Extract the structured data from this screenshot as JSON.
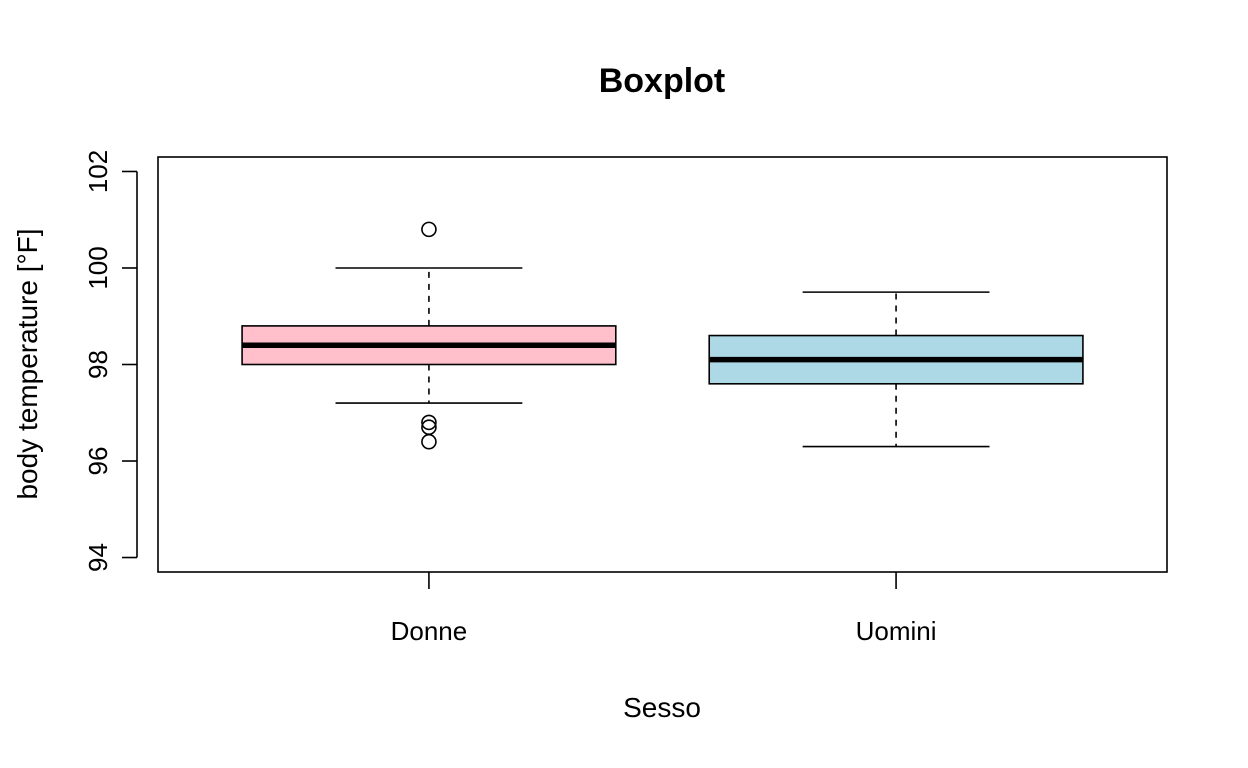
{
  "chart_data": {
    "type": "boxplot",
    "title": "Boxplot",
    "xlabel": "Sesso",
    "ylabel": "body temperature [°F]",
    "ylim": [
      93.7,
      102.3
    ],
    "yticks": [
      94,
      96,
      98,
      100,
      102
    ],
    "grid": false,
    "categories": [
      "Donne",
      "Uomini"
    ],
    "boxes": [
      {
        "category": "Donne",
        "whisker_low": 97.2,
        "q1": 98.0,
        "median": 98.4,
        "q3": 98.8,
        "whisker_high": 100.0,
        "outliers": [
          100.8,
          96.8,
          96.7,
          96.4
        ],
        "color": "#FFC0CB"
      },
      {
        "category": "Uomini",
        "whisker_low": 96.3,
        "q1": 97.6,
        "median": 98.1,
        "q3": 98.6,
        "whisker_high": 99.5,
        "outliers": [],
        "color": "#ADD8E6"
      }
    ]
  }
}
